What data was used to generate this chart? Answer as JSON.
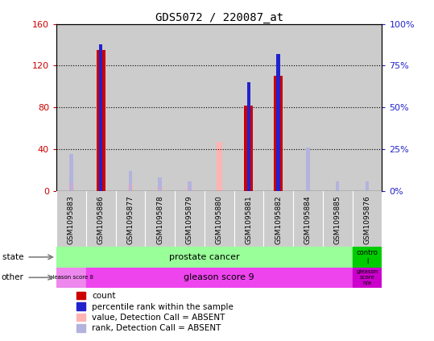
{
  "title": "GDS5072 / 220087_at",
  "samples": [
    "GSM1095883",
    "GSM1095886",
    "GSM1095877",
    "GSM1095878",
    "GSM1095879",
    "GSM1095880",
    "GSM1095881",
    "GSM1095882",
    "GSM1095884",
    "GSM1095885",
    "GSM1095876"
  ],
  "count_values": [
    0,
    135,
    0,
    0,
    0,
    0,
    82,
    110,
    0,
    0,
    0
  ],
  "percentile_values": [
    0,
    88,
    0,
    0,
    0,
    0,
    65,
    82,
    0,
    0,
    0
  ],
  "absent_value_values": [
    8,
    0,
    7,
    5,
    4,
    47,
    0,
    20,
    0,
    0,
    0
  ],
  "absent_rank_values": [
    22,
    0,
    12,
    8,
    6,
    0,
    0,
    0,
    26,
    6,
    6
  ],
  "ylim_left": [
    0,
    160
  ],
  "ylim_right": [
    0,
    100
  ],
  "yticks_left": [
    0,
    40,
    80,
    120,
    160
  ],
  "yticks_right": [
    0,
    25,
    50,
    75,
    100
  ],
  "ytick_labels_left": [
    "0",
    "40",
    "80",
    "120",
    "160"
  ],
  "ytick_labels_right": [
    "0%",
    "25%",
    "50%",
    "75%",
    "100%"
  ],
  "color_count": "#cc0000",
  "color_percentile": "#2222cc",
  "color_absent_value": "#ffb3b3",
  "color_absent_rank": "#b3b3dd",
  "color_prostate": "#99ff99",
  "color_control": "#00cc00",
  "color_gleason8": "#ee88ee",
  "color_gleason9": "#ee44ee",
  "color_gleason_na": "#cc00cc",
  "bg_color": "#cccccc",
  "count_bar_width": 0.3,
  "percentile_bar_width": 0.12,
  "absent_value_bar_width": 0.18,
  "absent_rank_bar_width": 0.12,
  "legend_items": [
    "count",
    "percentile rank within the sample",
    "value, Detection Call = ABSENT",
    "rank, Detection Call = ABSENT"
  ]
}
